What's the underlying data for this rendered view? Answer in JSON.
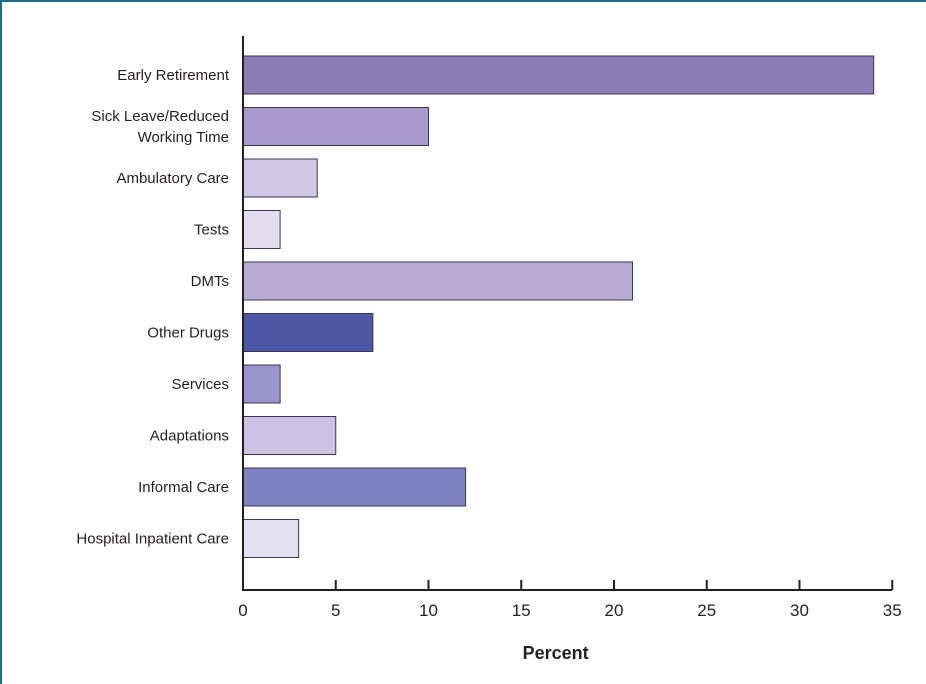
{
  "chart_data": {
    "type": "bar",
    "orientation": "horizontal",
    "title": "",
    "xlabel": "Percent",
    "ylabel": "",
    "xlim": [
      0,
      35
    ],
    "xticks": [
      0,
      5,
      10,
      15,
      20,
      25,
      30,
      35
    ],
    "grid": false,
    "legend": "none",
    "categories": [
      {
        "label": [
          "Early Retirement"
        ],
        "value": 34,
        "color": "#8b7db6"
      },
      {
        "label": [
          "Sick Leave/Reduced",
          "Working Time"
        ],
        "value": 10,
        "color": "#a899cb"
      },
      {
        "label": [
          "Ambulatory Care"
        ],
        "value": 4,
        "color": "#d0c9e5"
      },
      {
        "label": [
          "Tests"
        ],
        "value": 2,
        "color": "#e1ddef"
      },
      {
        "label": [
          "DMTs"
        ],
        "value": 21,
        "color": "#b8acd4"
      },
      {
        "label": [
          "Other Drugs"
        ],
        "value": 7,
        "color": "#4e56a6"
      },
      {
        "label": [
          "Services"
        ],
        "value": 2,
        "color": "#9896cd"
      },
      {
        "label": [
          "Adaptations"
        ],
        "value": 5,
        "color": "#cac3e3"
      },
      {
        "label": [
          "Informal Care"
        ],
        "value": 12,
        "color": "#7f82c2"
      },
      {
        "label": [
          "Hospital Inpatient Care"
        ],
        "value": 3,
        "color": "#e3e0f0"
      }
    ]
  }
}
